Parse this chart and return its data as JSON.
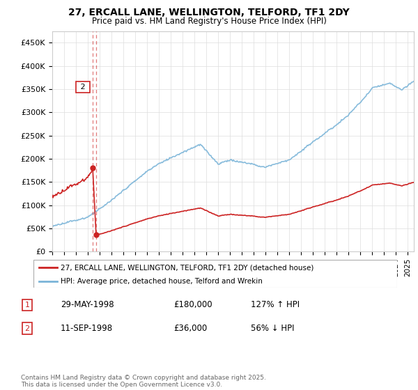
{
  "title": "27, ERCALL LANE, WELLINGTON, TELFORD, TF1 2DY",
  "subtitle": "Price paid vs. HM Land Registry's House Price Index (HPI)",
  "ylabel_ticks": [
    "£0",
    "£50K",
    "£100K",
    "£150K",
    "£200K",
    "£250K",
    "£300K",
    "£350K",
    "£400K",
    "£450K"
  ],
  "ytick_values": [
    0,
    50000,
    100000,
    150000,
    200000,
    250000,
    300000,
    350000,
    400000,
    450000
  ],
  "ylim": [
    0,
    475000
  ],
  "xlim_start": 1995.0,
  "xlim_end": 2025.5,
  "hpi_color": "#7ab4d8",
  "price_color": "#cc2222",
  "annotation_color": "#cc2222",
  "sale1_x": 1998.41,
  "sale1_y": 180000,
  "sale2_x": 1998.7,
  "sale2_y": 36000,
  "legend_label_price": "27, ERCALL LANE, WELLINGTON, TELFORD, TF1 2DY (detached house)",
  "legend_label_hpi": "HPI: Average price, detached house, Telford and Wrekin",
  "table_rows": [
    {
      "num": "1",
      "date": "29-MAY-1998",
      "price": "£180,000",
      "hpi": "127% ↑ HPI"
    },
    {
      "num": "2",
      "date": "11-SEP-1998",
      "price": "£36,000",
      "hpi": "56% ↓ HPI"
    }
  ],
  "footnote": "Contains HM Land Registry data © Crown copyright and database right 2025.\nThis data is licensed under the Open Government Licence v3.0.",
  "background_color": "#ffffff",
  "grid_color": "#dddddd"
}
